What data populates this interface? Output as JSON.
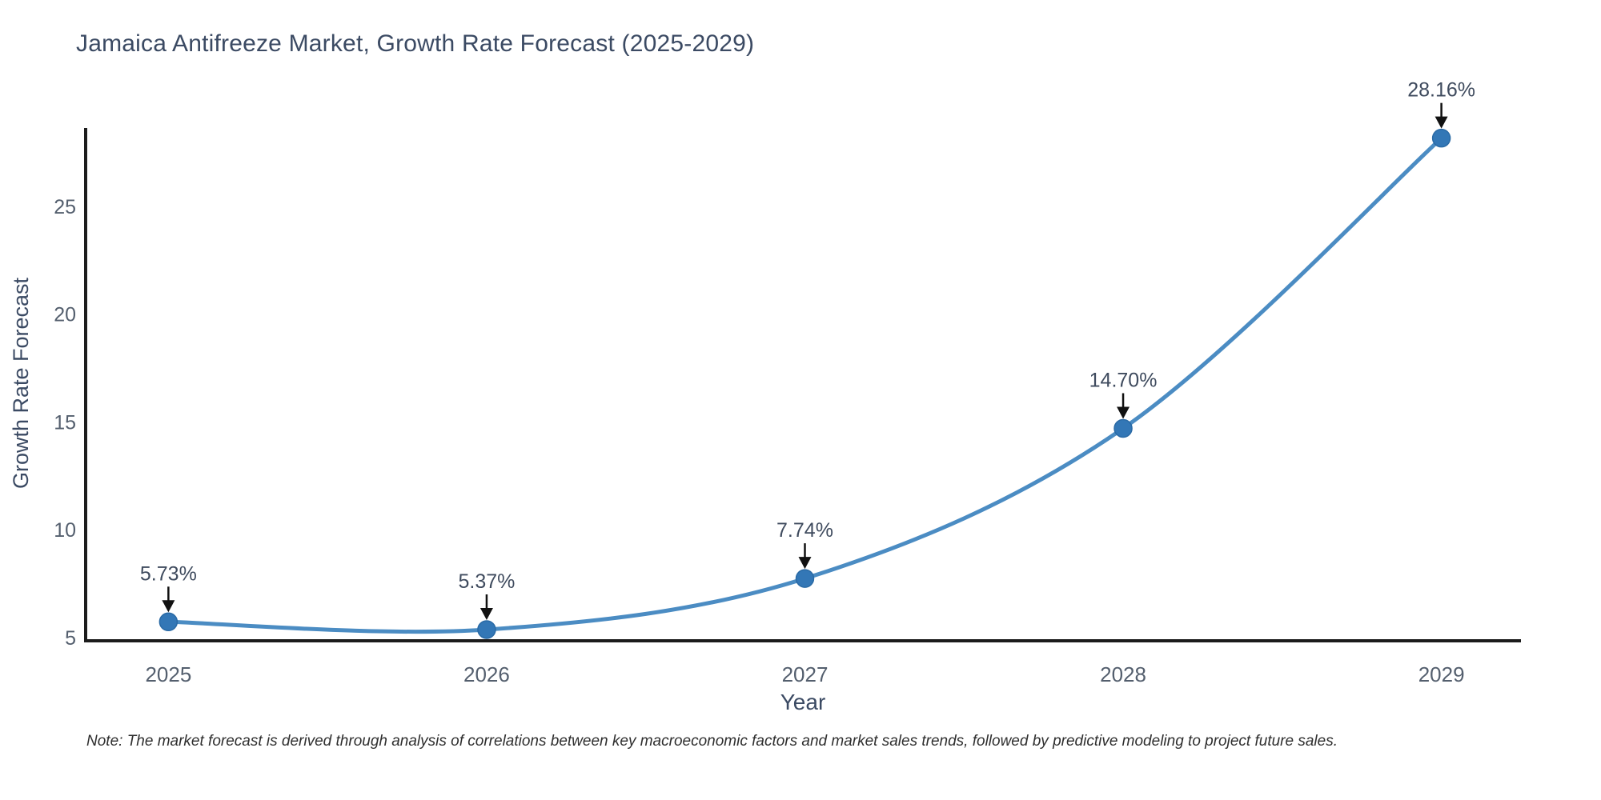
{
  "note": "Note: The market forecast is derived through analysis of correlations between key macroeconomic factors and market sales trends, followed by predictive modeling to project future sales.",
  "chart_data": {
    "type": "line",
    "title": "Jamaica Antifreeze Market, Growth Rate Forecast (2025-2029)",
    "xlabel": "Year",
    "ylabel": "Growth Rate Forecast",
    "x": [
      2025,
      2026,
      2027,
      2028,
      2029
    ],
    "values": [
      5.73,
      5.37,
      7.74,
      14.7,
      28.16
    ],
    "point_labels": [
      "5.73%",
      "5.37%",
      "7.74%",
      "14.70%",
      "28.16%"
    ],
    "xticks": [
      "2025",
      "2026",
      "2027",
      "2028",
      "2029"
    ],
    "yticks": [
      5,
      10,
      15,
      20,
      25
    ],
    "xlim": [
      2024.74,
      2029.25
    ],
    "ylim": [
      4.85,
      28.63
    ],
    "grid": false,
    "legend": "none",
    "smooth_spline": true,
    "annotations_with_arrows": true,
    "line_color": "#4b8cc3",
    "marker_color": "#3377b6",
    "marker_edge_color": "#2a6aa5",
    "axis_color": "#1c1c1c",
    "annotation_color": "#3f4b5e",
    "annotation_arrow_color": "#111111",
    "tick_color": "#545f6e",
    "title_color": "#3b4a63",
    "background_color": "#ffffff"
  }
}
